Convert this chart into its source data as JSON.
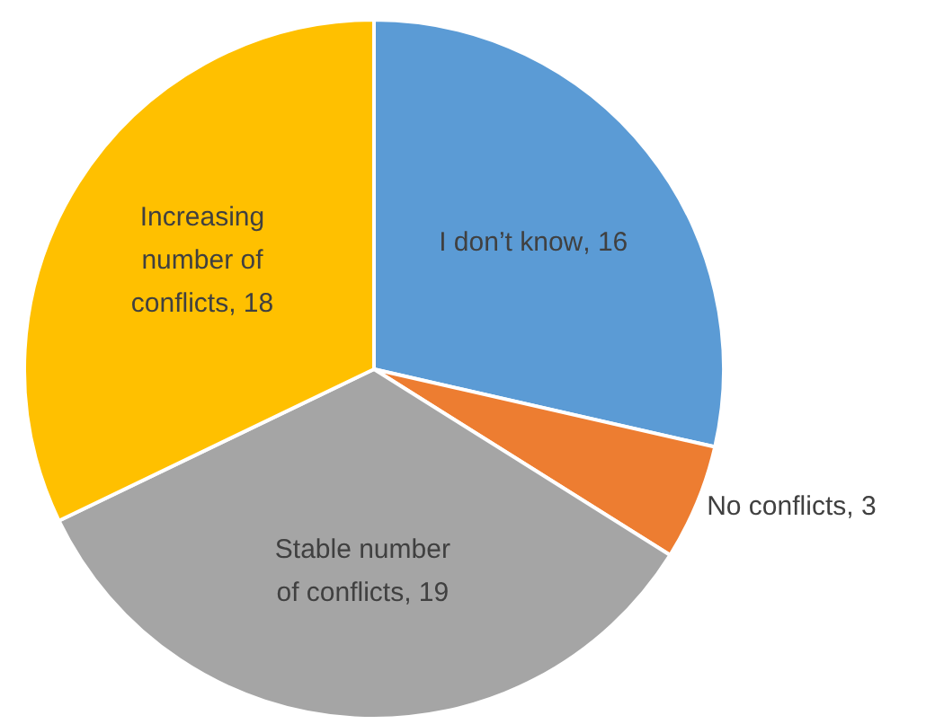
{
  "chart_data": {
    "type": "pie",
    "categories": [
      "I don’t know",
      "No conflicts",
      "Stable number of conflicts",
      "Increasing number of conflicts"
    ],
    "values": [
      16,
      3,
      19,
      18
    ],
    "colors": [
      "#5b9bd5",
      "#ed7d31",
      "#a5a5a5",
      "#ffc000"
    ],
    "value_labels": [
      ", 16",
      ", 3",
      ", 19",
      ", 18"
    ],
    "legend": false
  }
}
